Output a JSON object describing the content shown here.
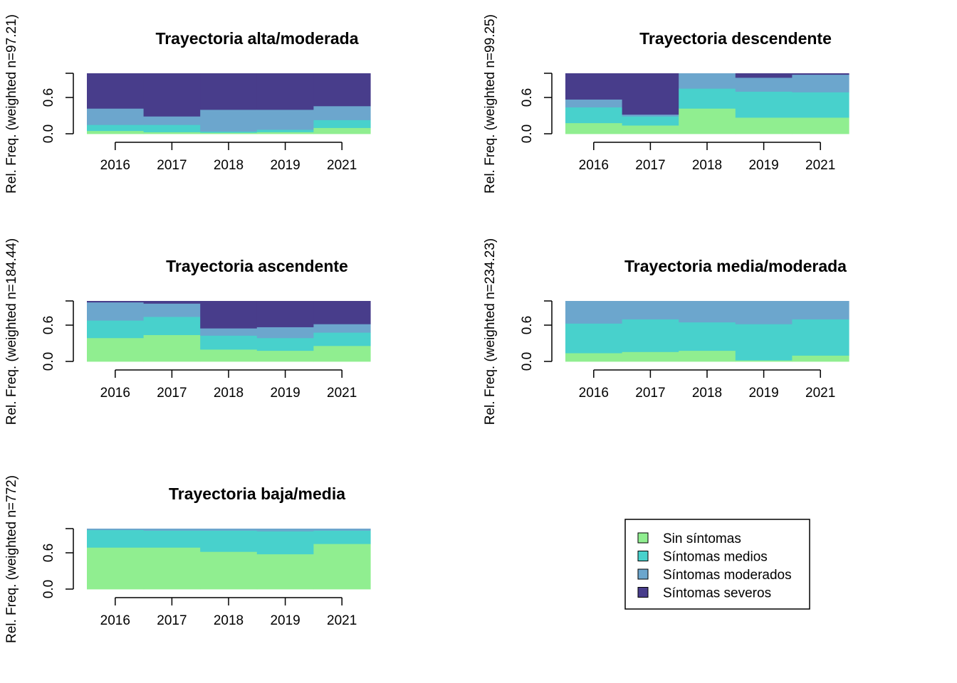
{
  "legend": {
    "position": "bottom-right",
    "items": [
      {
        "label": "Sin síntomas",
        "color": "#90EE90"
      },
      {
        "label": "Síntomas medios",
        "color": "#48D1CC"
      },
      {
        "label": "Síntomas moderados",
        "color": "#6CA6CD"
      },
      {
        "label": "Síntomas severos",
        "color": "#483D8B"
      }
    ]
  },
  "chart_data": [
    {
      "type": "area",
      "title": "Trayectoria alta/moderada",
      "ylabel": "Rel. Freq. (weighted n=97.21)",
      "categories": [
        "2016",
        "2017",
        "2018",
        "2019",
        "2021"
      ],
      "ylim": [
        0,
        1
      ],
      "yticks": [
        "0.0",
        "0.6"
      ],
      "series": [
        {
          "name": "Sin síntomas",
          "values": [
            0.05,
            0.03,
            0.02,
            0.03,
            0.1
          ]
        },
        {
          "name": "Síntomas medios",
          "values": [
            0.1,
            0.12,
            0.02,
            0.04,
            0.13
          ]
        },
        {
          "name": "Síntomas moderados",
          "values": [
            0.27,
            0.14,
            0.36,
            0.33,
            0.23
          ]
        },
        {
          "name": "Síntomas severos",
          "values": [
            0.58,
            0.71,
            0.6,
            0.6,
            0.54
          ]
        }
      ]
    },
    {
      "type": "area",
      "title": "Trayectoria descendente",
      "ylabel": "Rel. Freq. (weighted n=99.25)",
      "categories": [
        "2016",
        "2017",
        "2018",
        "2019",
        "2021"
      ],
      "ylim": [
        0,
        1
      ],
      "yticks": [
        "0.0",
        "0.6"
      ],
      "series": [
        {
          "name": "Sin síntomas",
          "values": [
            0.18,
            0.14,
            0.42,
            0.27,
            0.27
          ]
        },
        {
          "name": "Síntomas medios",
          "values": [
            0.26,
            0.15,
            0.33,
            0.43,
            0.42
          ]
        },
        {
          "name": "Síntomas moderados",
          "values": [
            0.13,
            0.03,
            0.25,
            0.23,
            0.29
          ]
        },
        {
          "name": "Síntomas severos",
          "values": [
            0.43,
            0.68,
            0.0,
            0.07,
            0.02
          ]
        }
      ]
    },
    {
      "type": "area",
      "title": "Trayectoria ascendente",
      "ylabel": "Rel. Freq. (weighted n=184.44)",
      "categories": [
        "2016",
        "2017",
        "2018",
        "2019",
        "2021"
      ],
      "ylim": [
        0,
        1
      ],
      "yticks": [
        "0.0",
        "0.6"
      ],
      "series": [
        {
          "name": "Sin síntomas",
          "values": [
            0.39,
            0.44,
            0.2,
            0.18,
            0.26
          ]
        },
        {
          "name": "Síntomas medios",
          "values": [
            0.29,
            0.3,
            0.23,
            0.21,
            0.22
          ]
        },
        {
          "name": "Síntomas moderados",
          "values": [
            0.3,
            0.22,
            0.12,
            0.18,
            0.14
          ]
        },
        {
          "name": "Síntomas severos",
          "values": [
            0.02,
            0.04,
            0.45,
            0.43,
            0.38
          ]
        }
      ]
    },
    {
      "type": "area",
      "title": "Trayectoria media/moderada",
      "ylabel": "Rel. Freq. (weighted n=234.23)",
      "categories": [
        "2016",
        "2017",
        "2018",
        "2019",
        "2021"
      ],
      "ylim": [
        0,
        1
      ],
      "yticks": [
        "0.0",
        "0.6"
      ],
      "series": [
        {
          "name": "Sin síntomas",
          "values": [
            0.14,
            0.16,
            0.18,
            0.02,
            0.1
          ]
        },
        {
          "name": "Síntomas medios",
          "values": [
            0.49,
            0.54,
            0.47,
            0.6,
            0.6
          ]
        },
        {
          "name": "Síntomas moderados",
          "values": [
            0.37,
            0.3,
            0.35,
            0.38,
            0.3
          ]
        },
        {
          "name": "Síntomas severos",
          "values": [
            0.0,
            0.0,
            0.0,
            0.0,
            0.0
          ]
        }
      ]
    },
    {
      "type": "area",
      "title": "Trayectoria baja/media",
      "ylabel": "Rel. Freq. (weighted n=772)",
      "categories": [
        "2016",
        "2017",
        "2018",
        "2019",
        "2021"
      ],
      "ylim": [
        0,
        1
      ],
      "yticks": [
        "0.0",
        "0.6"
      ],
      "series": [
        {
          "name": "Sin síntomas",
          "values": [
            0.69,
            0.69,
            0.62,
            0.58,
            0.75
          ]
        },
        {
          "name": "Síntomas medios",
          "values": [
            0.29,
            0.28,
            0.35,
            0.38,
            0.22
          ]
        },
        {
          "name": "Síntomas moderados",
          "values": [
            0.02,
            0.03,
            0.03,
            0.04,
            0.03
          ]
        },
        {
          "name": "Síntomas severos",
          "values": [
            0.0,
            0.0,
            0.0,
            0.0,
            0.0
          ]
        }
      ]
    }
  ]
}
